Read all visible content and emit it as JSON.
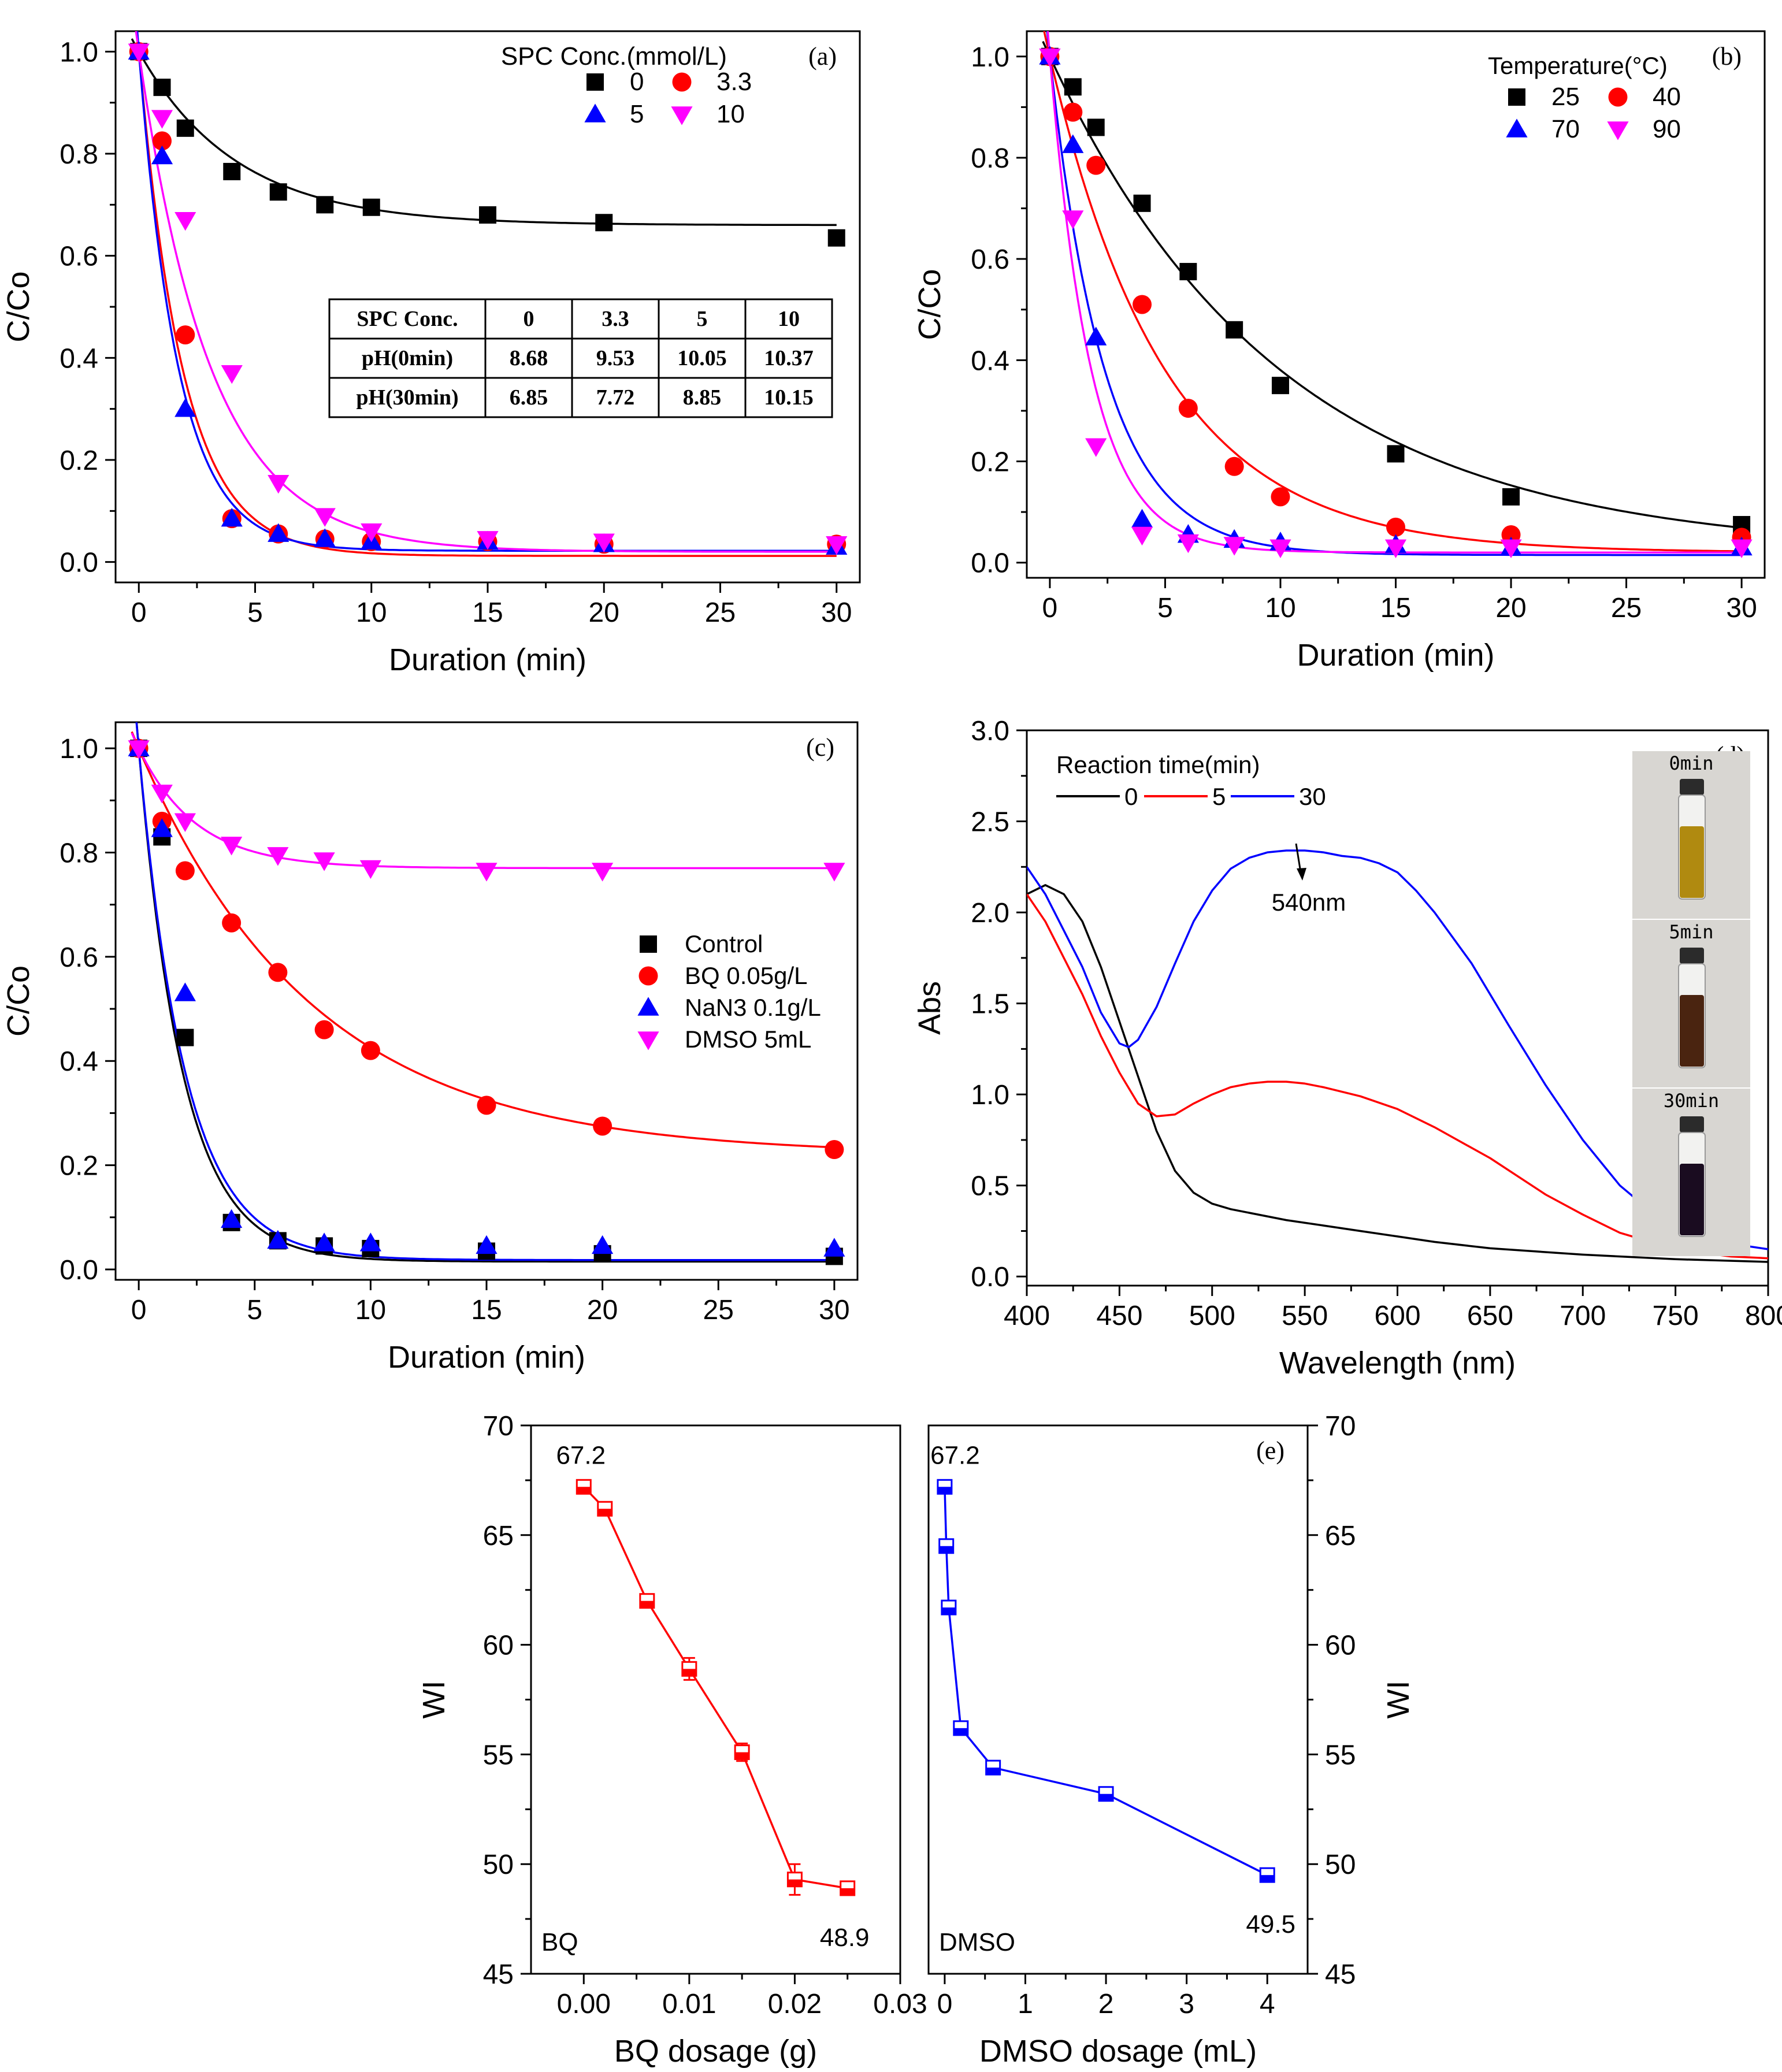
{
  "colors": {
    "black": "#000000",
    "red": "#ff0000",
    "blue": "#0000ff",
    "magenta": "#ff00ff",
    "vial_yellow": "#b08a10",
    "vial_brown": "#4a2410",
    "vial_purple": "#1a0c20",
    "photo_bg": "#d8d6d2"
  },
  "chart_data": [
    {
      "id": "a",
      "type": "scatter",
      "panel_label": "(a)",
      "xlabel": "Duration (min)",
      "ylabel": "C/Co",
      "xlim": [
        -1,
        31
      ],
      "ylim": [
        -0.04,
        1.04
      ],
      "xticks": [
        "0",
        "5",
        "10",
        "15",
        "20",
        "25",
        "30"
      ],
      "yticks": [
        "0.0",
        "0.2",
        "0.4",
        "0.6",
        "0.8",
        "1.0"
      ],
      "legend_title": "SPC Conc.(mmol/L)",
      "legend_position": "top-right",
      "series": [
        {
          "name": "0",
          "marker": "square",
          "color": "#000000",
          "x": [
            0,
            1,
            2,
            4,
            6,
            8,
            10,
            15,
            20,
            30
          ],
          "y": [
            1.0,
            0.93,
            0.85,
            0.765,
            0.725,
            0.7,
            0.695,
            0.68,
            0.665,
            0.635
          ],
          "fit": [
            0.66,
            0.34,
            4.2
          ]
        },
        {
          "name": "3.3",
          "marker": "circle",
          "color": "#ff0000",
          "x": [
            0,
            1,
            2,
            4,
            6,
            8,
            10,
            15,
            20,
            30
          ],
          "y": [
            1.0,
            0.825,
            0.445,
            0.085,
            0.055,
            0.045,
            0.04,
            0.04,
            0.035,
            0.035
          ],
          "fit": [
            0.012,
            0.988,
            1.9
          ]
        },
        {
          "name": "5",
          "marker": "triangle-up",
          "color": "#0000ff",
          "x": [
            0,
            1,
            2,
            4,
            6,
            8,
            10,
            15,
            20,
            30
          ],
          "y": [
            1.0,
            0.795,
            0.3,
            0.085,
            0.055,
            0.045,
            0.04,
            0.04,
            0.035,
            0.03
          ],
          "fit": [
            0.022,
            0.978,
            1.7
          ]
        },
        {
          "name": "10",
          "marker": "triangle-down",
          "color": "#ff00ff",
          "x": [
            0,
            1,
            2,
            4,
            6,
            8,
            10,
            15,
            20,
            30
          ],
          "y": [
            1.0,
            0.87,
            0.67,
            0.37,
            0.155,
            0.09,
            0.06,
            0.045,
            0.04,
            0.035
          ],
          "fit": [
            0.02,
            0.98,
            3.1
          ]
        }
      ],
      "table": {
        "rows": [
          [
            "SPC Conc.",
            "0",
            "3.3",
            "5",
            "10"
          ],
          [
            "pH(0min)",
            "8.68",
            "9.53",
            "10.05",
            "10.37"
          ],
          [
            "pH(30min)",
            "6.85",
            "7.72",
            "8.85",
            "10.15"
          ]
        ]
      }
    },
    {
      "id": "b",
      "type": "scatter",
      "panel_label": "(b)",
      "xlabel": "Duration (min)",
      "ylabel": "C/Co",
      "xlim": [
        -1,
        31
      ],
      "ylim": [
        -0.03,
        1.05
      ],
      "xticks": [
        "0",
        "5",
        "10",
        "15",
        "20",
        "25",
        "30"
      ],
      "yticks": [
        "0.0",
        "0.2",
        "0.4",
        "0.6",
        "0.8",
        "1.0"
      ],
      "legend_title": "Temperature(°C)",
      "legend_position": "top-right",
      "series": [
        {
          "name": "25",
          "marker": "square",
          "color": "#000000",
          "x": [
            0,
            1,
            2,
            4,
            6,
            8,
            10,
            15,
            20,
            30
          ],
          "y": [
            1.0,
            0.94,
            0.86,
            0.71,
            0.575,
            0.46,
            0.35,
            0.215,
            0.13,
            0.075
          ],
          "fit": [
            0.02,
            0.98,
            10.0
          ]
        },
        {
          "name": "40",
          "marker": "circle",
          "color": "#ff0000",
          "x": [
            0,
            1,
            2,
            4,
            6,
            8,
            10,
            15,
            20,
            30
          ],
          "y": [
            1.0,
            0.89,
            0.785,
            0.51,
            0.305,
            0.19,
            0.13,
            0.07,
            0.055,
            0.05
          ],
          "fit": [
            0.02,
            0.98,
            5.0
          ]
        },
        {
          "name": "70",
          "marker": "triangle-up",
          "color": "#0000ff",
          "x": [
            0,
            1,
            2,
            4,
            6,
            8,
            10,
            15,
            20,
            30
          ],
          "y": [
            1.0,
            0.825,
            0.445,
            0.085,
            0.055,
            0.045,
            0.04,
            0.035,
            0.03,
            0.03
          ],
          "fit": [
            0.015,
            0.985,
            2.4
          ]
        },
        {
          "name": "90",
          "marker": "triangle-down",
          "color": "#ff00ff",
          "x": [
            0,
            1,
            2,
            4,
            6,
            8,
            10,
            15,
            20,
            30
          ],
          "y": [
            1.0,
            0.68,
            0.23,
            0.055,
            0.04,
            0.035,
            0.03,
            0.03,
            0.03,
            0.03
          ],
          "fit": [
            0.02,
            0.98,
            1.8
          ]
        }
      ]
    },
    {
      "id": "c",
      "type": "scatter",
      "panel_label": "(c)",
      "xlabel": "Duration (min)",
      "ylabel": "C/Co",
      "xlim": [
        -1,
        31
      ],
      "ylim": [
        -0.02,
        1.05
      ],
      "xticks": [
        "0",
        "5",
        "10",
        "15",
        "20",
        "25",
        "30"
      ],
      "yticks": [
        "0.0",
        "0.2",
        "0.4",
        "0.6",
        "0.8",
        "1.0"
      ],
      "legend_position": "center-right",
      "series": [
        {
          "name": "Control",
          "marker": "square",
          "color": "#000000",
          "x": [
            0,
            1,
            2,
            4,
            6,
            8,
            10,
            15,
            20,
            30
          ],
          "y": [
            1.0,
            0.83,
            0.445,
            0.09,
            0.055,
            0.045,
            0.04,
            0.035,
            0.03,
            0.025
          ],
          "fit": [
            0.015,
            0.985,
            1.9
          ]
        },
        {
          "name": "BQ 0.05g/L",
          "marker": "circle",
          "color": "#ff0000",
          "x": [
            0,
            1,
            2,
            4,
            6,
            8,
            10,
            15,
            20,
            30
          ],
          "y": [
            1.0,
            0.86,
            0.765,
            0.665,
            0.57,
            0.46,
            0.42,
            0.315,
            0.275,
            0.23
          ],
          "fit": [
            0.22,
            0.78,
            7.5
          ]
        },
        {
          "name": "NaN3 0.1g/L",
          "marker": "triangle-up",
          "color": "#0000ff",
          "x": [
            0,
            1,
            2,
            4,
            6,
            8,
            10,
            15,
            20,
            30
          ],
          "y": [
            1.0,
            0.845,
            0.53,
            0.095,
            0.055,
            0.05,
            0.05,
            0.045,
            0.045,
            0.04
          ],
          "fit": [
            0.018,
            0.982,
            2.0
          ]
        },
        {
          "name": "DMSO 5mL",
          "marker": "triangle-down",
          "color": "#ff00ff",
          "x": [
            0,
            1,
            2,
            4,
            6,
            8,
            10,
            15,
            20,
            30
          ],
          "y": [
            1.0,
            0.915,
            0.86,
            0.815,
            0.795,
            0.785,
            0.77,
            0.765,
            0.765,
            0.765
          ],
          "fit": [
            0.77,
            0.23,
            2.5
          ]
        }
      ]
    },
    {
      "id": "d",
      "type": "line",
      "panel_label": "(d)",
      "xlabel": "Wavelength (nm)",
      "ylabel": "Abs",
      "xlim": [
        400,
        800
      ],
      "ylim": [
        -0.05,
        3.0
      ],
      "xticks": [
        "400",
        "450",
        "500",
        "550",
        "600",
        "650",
        "700",
        "750",
        "800"
      ],
      "yticks": [
        "0.0",
        "0.5",
        "1.0",
        "1.5",
        "2.0",
        "2.5",
        "3.0"
      ],
      "legend_title": "Reaction time(min)",
      "legend_position": "top-left",
      "annotation": "540nm",
      "series": [
        {
          "name": "0",
          "color": "#000000",
          "x": [
            400,
            410,
            420,
            430,
            440,
            450,
            460,
            470,
            480,
            490,
            500,
            510,
            520,
            540,
            560,
            580,
            600,
            620,
            650,
            700,
            750,
            800
          ],
          "y": [
            2.1,
            2.15,
            2.1,
            1.95,
            1.7,
            1.4,
            1.1,
            0.8,
            0.58,
            0.46,
            0.4,
            0.37,
            0.35,
            0.31,
            0.28,
            0.25,
            0.22,
            0.19,
            0.155,
            0.12,
            0.095,
            0.08
          ]
        },
        {
          "name": "5",
          "color": "#ff0000",
          "x": [
            400,
            410,
            420,
            430,
            440,
            450,
            460,
            470,
            480,
            490,
            500,
            510,
            520,
            530,
            540,
            550,
            560,
            580,
            600,
            620,
            650,
            680,
            700,
            720,
            750,
            780,
            800
          ],
          "y": [
            2.1,
            1.95,
            1.75,
            1.55,
            1.32,
            1.12,
            0.95,
            0.88,
            0.89,
            0.95,
            1.0,
            1.04,
            1.06,
            1.07,
            1.07,
            1.06,
            1.04,
            0.99,
            0.92,
            0.82,
            0.65,
            0.45,
            0.34,
            0.24,
            0.15,
            0.11,
            0.1
          ]
        },
        {
          "name": "30",
          "color": "#0000ff",
          "x": [
            400,
            410,
            420,
            430,
            440,
            450,
            455,
            460,
            470,
            480,
            490,
            500,
            510,
            520,
            530,
            540,
            550,
            560,
            570,
            580,
            590,
            600,
            610,
            620,
            640,
            660,
            680,
            700,
            720,
            740,
            760,
            780,
            800
          ],
          "y": [
            2.25,
            2.1,
            1.9,
            1.7,
            1.45,
            1.28,
            1.26,
            1.3,
            1.48,
            1.72,
            1.95,
            2.12,
            2.24,
            2.3,
            2.33,
            2.34,
            2.34,
            2.33,
            2.31,
            2.3,
            2.27,
            2.22,
            2.12,
            2.0,
            1.72,
            1.38,
            1.05,
            0.75,
            0.5,
            0.33,
            0.22,
            0.18,
            0.15
          ]
        }
      ],
      "photo_labels": [
        "0min",
        "5min",
        "30min"
      ]
    },
    {
      "id": "e_left",
      "type": "line",
      "xlabel": "BQ dosage (g)",
      "ylabel": "WI",
      "xlim": [
        -0.005,
        0.03
      ],
      "ylim": [
        45,
        70
      ],
      "xticks": [
        "0.00",
        "0.01",
        "0.02",
        "0.03"
      ],
      "yticks": [
        "45",
        "50",
        "55",
        "60",
        "65",
        "70"
      ],
      "inner_label": "BQ",
      "series": [
        {
          "name": "",
          "marker": "half-square",
          "color": "#ff0000",
          "x": [
            0.0,
            0.002,
            0.006,
            0.01,
            0.015,
            0.02,
            0.025
          ],
          "y": [
            67.2,
            66.2,
            62.0,
            58.9,
            55.1,
            49.3,
            48.9
          ],
          "err": [
            0.2,
            0.2,
            0.2,
            0.5,
            0.4,
            0.7,
            0.2
          ]
        }
      ],
      "point_labels": [
        "67.2",
        "48.9"
      ]
    },
    {
      "id": "e_right",
      "type": "line",
      "panel_label": "(e)",
      "xlabel": "DMSO dosage (mL)",
      "ylabel": "WI",
      "xlim": [
        -0.2,
        4.5
      ],
      "ylim": [
        45,
        70
      ],
      "xticks": [
        "0",
        "1",
        "2",
        "3",
        "4"
      ],
      "yticks": [
        "45",
        "50",
        "55",
        "60",
        "65",
        "70"
      ],
      "inner_label": "DMSO",
      "series": [
        {
          "name": "",
          "marker": "half-square",
          "color": "#0000ff",
          "x": [
            0.0,
            0.02,
            0.05,
            0.2,
            0.6,
            2.0,
            4.0
          ],
          "y": [
            67.2,
            64.5,
            61.7,
            56.2,
            54.4,
            53.2,
            49.5
          ],
          "err": [
            0.2,
            0.2,
            0.2,
            0.2,
            0.2,
            0.2,
            0.2
          ]
        }
      ],
      "point_labels": [
        "67.2",
        "49.5"
      ]
    }
  ]
}
